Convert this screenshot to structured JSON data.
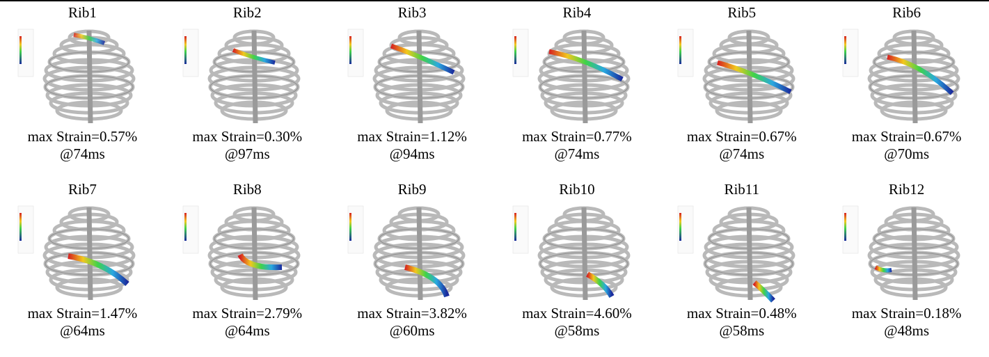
{
  "figure": {
    "cells": [
      {
        "title": "Rib1",
        "strain": "max Strain=0.57%",
        "time": "@74ms"
      },
      {
        "title": "Rib2",
        "strain": "max Strain=0.30%",
        "time": "@97ms"
      },
      {
        "title": "Rib3",
        "strain": "max Strain=1.12%",
        "time": "@94ms"
      },
      {
        "title": "Rib4",
        "strain": "max Strain=0.77%",
        "time": "@74ms"
      },
      {
        "title": "Rib5",
        "strain": "max Strain=0.67%",
        "time": "@74ms"
      },
      {
        "title": "Rib6",
        "strain": "max Strain=0.67%",
        "time": "@70ms"
      },
      {
        "title": "Rib7",
        "strain": "max Strain=1.47%",
        "time": "@64ms"
      },
      {
        "title": "Rib8",
        "strain": "max Strain=2.79%",
        "time": "@64ms"
      },
      {
        "title": "Rib9",
        "strain": "max Strain=3.82%",
        "time": "@60ms"
      },
      {
        "title": "Rib10",
        "strain": "max Strain=4.60%",
        "time": "@58ms"
      },
      {
        "title": "Rib11",
        "strain": "max Strain=0.48%",
        "time": "@58ms"
      },
      {
        "title": "Rib12",
        "strain": "max Strain=0.18%",
        "time": "@48ms"
      }
    ]
  }
}
